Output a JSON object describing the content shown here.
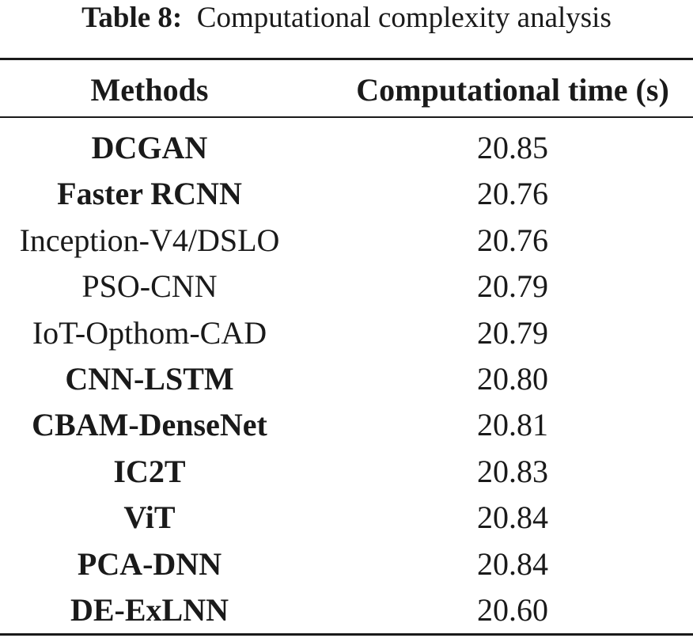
{
  "caption": {
    "label": "Table 8:",
    "title": "Computational complexity analysis"
  },
  "table": {
    "headers": {
      "method": "Methods",
      "time": "Computational time (s)"
    },
    "rows": [
      {
        "method": "DCGAN",
        "time": "20.85",
        "bold": true
      },
      {
        "method": "Faster RCNN",
        "time": "20.76",
        "bold": true
      },
      {
        "method": "Inception-V4/DSLO",
        "time": "20.76",
        "bold": false
      },
      {
        "method": "PSO-CNN",
        "time": "20.79",
        "bold": false
      },
      {
        "method": "IoT-Opthom-CAD",
        "time": "20.79",
        "bold": false
      },
      {
        "method": "CNN-LSTM",
        "time": "20.80",
        "bold": true
      },
      {
        "method": "CBAM-DenseNet",
        "time": "20.81",
        "bold": true
      },
      {
        "method": "IC2T",
        "time": "20.83",
        "bold": true
      },
      {
        "method": "ViT",
        "time": "20.84",
        "bold": true
      },
      {
        "method": "PCA-DNN",
        "time": "20.84",
        "bold": true
      },
      {
        "method": "DE-ExLNN",
        "time": "20.60",
        "bold": true
      }
    ]
  }
}
